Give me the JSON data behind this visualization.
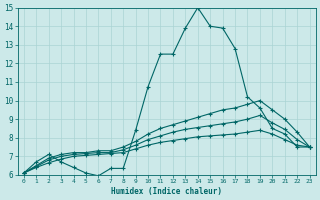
{
  "xlabel": "Humidex (Indice chaleur)",
  "ylabel": "",
  "xlim": [
    -0.5,
    23.5
  ],
  "ylim": [
    6,
    15
  ],
  "xticks": [
    0,
    1,
    2,
    3,
    4,
    5,
    6,
    7,
    8,
    9,
    10,
    11,
    12,
    13,
    14,
    15,
    16,
    17,
    18,
    19,
    20,
    21,
    22,
    23
  ],
  "yticks": [
    6,
    7,
    8,
    9,
    10,
    11,
    12,
    13,
    14,
    15
  ],
  "bg_color": "#cce9e9",
  "grid_color": "#aad4d4",
  "line_color": "#006666",
  "lines": [
    {
      "x": [
        0,
        1,
        2,
        3,
        4,
        5,
        6,
        7,
        8,
        9,
        10,
        11,
        12,
        13,
        14,
        15,
        16,
        17,
        18,
        19,
        20,
        21,
        22,
        23
      ],
      "y": [
        6.1,
        6.7,
        7.1,
        6.7,
        6.4,
        6.1,
        5.95,
        6.35,
        6.35,
        8.4,
        10.75,
        12.5,
        12.5,
        13.9,
        15.0,
        14.0,
        13.9,
        12.8,
        10.2,
        9.6,
        8.5,
        8.2,
        7.5,
        7.5
      ]
    },
    {
      "x": [
        0,
        1,
        2,
        3,
        4,
        5,
        6,
        7,
        8,
        9,
        10,
        11,
        12,
        13,
        14,
        15,
        16,
        17,
        18,
        19,
        20,
        21,
        22,
        23
      ],
      "y": [
        6.1,
        6.5,
        6.9,
        7.1,
        7.2,
        7.2,
        7.3,
        7.3,
        7.5,
        7.8,
        8.2,
        8.5,
        8.7,
        8.9,
        9.1,
        9.3,
        9.5,
        9.6,
        9.8,
        10.0,
        9.5,
        9.0,
        8.3,
        7.5
      ]
    },
    {
      "x": [
        0,
        1,
        2,
        3,
        4,
        5,
        6,
        7,
        8,
        9,
        10,
        11,
        12,
        13,
        14,
        15,
        16,
        17,
        18,
        19,
        20,
        21,
        22,
        23
      ],
      "y": [
        6.1,
        6.45,
        6.8,
        7.0,
        7.1,
        7.15,
        7.2,
        7.2,
        7.35,
        7.6,
        7.9,
        8.1,
        8.3,
        8.45,
        8.55,
        8.65,
        8.75,
        8.85,
        9.0,
        9.2,
        8.8,
        8.45,
        7.9,
        7.5
      ]
    },
    {
      "x": [
        0,
        1,
        2,
        3,
        4,
        5,
        6,
        7,
        8,
        9,
        10,
        11,
        12,
        13,
        14,
        15,
        16,
        17,
        18,
        19,
        20,
        21,
        22,
        23
      ],
      "y": [
        6.1,
        6.4,
        6.65,
        6.85,
        7.0,
        7.05,
        7.1,
        7.15,
        7.2,
        7.4,
        7.6,
        7.75,
        7.85,
        7.95,
        8.05,
        8.1,
        8.15,
        8.2,
        8.3,
        8.4,
        8.2,
        7.9,
        7.6,
        7.5
      ]
    }
  ]
}
